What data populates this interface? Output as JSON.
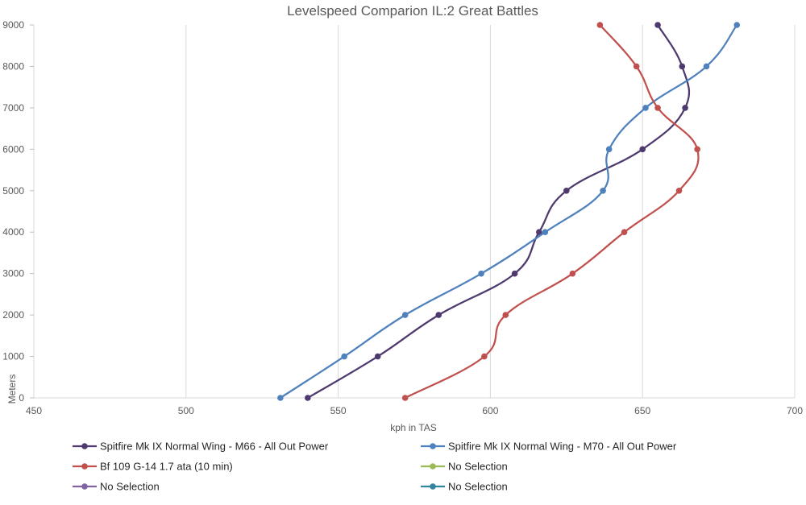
{
  "chart_data": {
    "type": "line",
    "title": "Levelspeed Comparion IL:2 Great Battles",
    "xlabel": "kph in TAS",
    "ylabel": "Meters",
    "xlim": [
      450,
      700
    ],
    "ylim": [
      0,
      9000
    ],
    "x_ticks": [
      "450",
      "500",
      "550",
      "600",
      "650",
      "700"
    ],
    "y_ticks": [
      "0",
      "1000",
      "2000",
      "3000",
      "4000",
      "5000",
      "6000",
      "7000",
      "8000",
      "9000"
    ],
    "grid": "vertical",
    "legend_position": "bottom",
    "series": [
      {
        "name": "Spitfire Mk IX Normal Wing - M66 - All Out Power",
        "color": "#4e3a6e",
        "points": [
          [
            540,
            0
          ],
          [
            563,
            1000
          ],
          [
            583,
            2000
          ],
          [
            608,
            3000
          ],
          [
            616,
            4000
          ],
          [
            625,
            5000
          ],
          [
            650,
            6000
          ],
          [
            664,
            7000
          ],
          [
            663,
            8000
          ],
          [
            655,
            9000
          ]
        ]
      },
      {
        "name": "Spitfire Mk IX Normal Wing - M70 - All Out Power",
        "color": "#4f81bd",
        "points": [
          [
            531,
            0
          ],
          [
            552,
            1000
          ],
          [
            572,
            2000
          ],
          [
            597,
            3000
          ],
          [
            618,
            4000
          ],
          [
            637,
            5000
          ],
          [
            639,
            6000
          ],
          [
            651,
            7000
          ],
          [
            671,
            8000
          ],
          [
            681,
            9000
          ]
        ]
      },
      {
        "name": "Bf 109 G-14 1.7 ata (10 min)",
        "color": "#c0504d",
        "points": [
          [
            572,
            0
          ],
          [
            598,
            1000
          ],
          [
            605,
            2000
          ],
          [
            627,
            3000
          ],
          [
            644,
            4000
          ],
          [
            662,
            5000
          ],
          [
            668,
            6000
          ],
          [
            655,
            7000
          ],
          [
            648,
            8000
          ],
          [
            636,
            9000
          ]
        ]
      },
      {
        "name": "No Selection",
        "color": "#9bbb59",
        "points": []
      },
      {
        "name": "No Selection",
        "color": "#8064a2",
        "points": []
      },
      {
        "name": "No Selection",
        "color": "#31859c",
        "points": []
      }
    ]
  }
}
